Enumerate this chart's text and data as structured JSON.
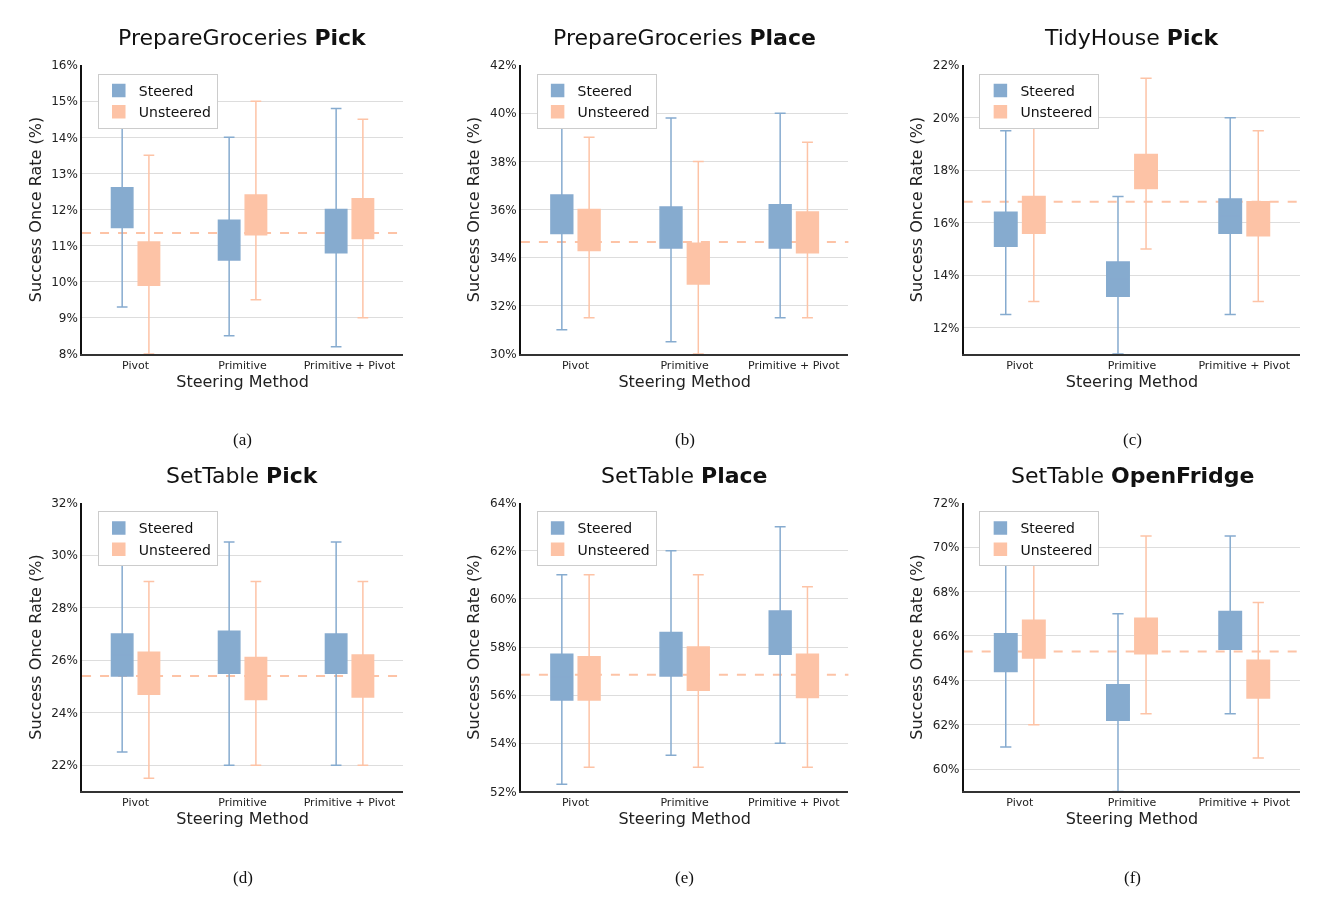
{
  "chart_data": [
    {
      "type": "box",
      "title": "PrepareGroceries Pick",
      "xlabel": "Steering Method",
      "ylabel": "Success Once Rate (%)",
      "categories": [
        "Pivot",
        "Primitive",
        "Primitive + Pivot"
      ],
      "ylim": [
        8,
        16
      ],
      "yticks": [
        {
          "value": 8,
          "label": "8%"
        },
        {
          "value": 9,
          "label": "9%"
        },
        {
          "value": 10,
          "label": "10%"
        },
        {
          "value": 11,
          "label": "11%"
        },
        {
          "value": 12,
          "label": "12%"
        },
        {
          "value": 13,
          "label": "13%"
        },
        {
          "value": 14,
          "label": "14%"
        },
        {
          "value": 15,
          "label": "15%"
        },
        {
          "value": 16,
          "label": "16%"
        }
      ],
      "grid": "y",
      "legend": "top left",
      "annotations": [
        "(a)"
      ],
      "ref_lines": [
        {
          "axis": "y",
          "value": 11.35,
          "color": "#fdc3a6",
          "line_style": "dashed"
        }
      ],
      "series": [
        {
          "name": "Steered",
          "color": "#86abcf",
          "boxes": [
            {
              "low": 9.3,
              "q1": 11.5,
              "median": 12.05,
              "q3": 12.6,
              "high": 14.8
            },
            {
              "low": 8.5,
              "q1": 10.6,
              "median": 11.15,
              "q3": 11.7,
              "high": 14.0
            },
            {
              "low": 8.2,
              "q1": 10.8,
              "median": 11.4,
              "q3": 12.0,
              "high": 14.8
            }
          ]
        },
        {
          "name": "Unsteered",
          "color": "#fdc3a6",
          "boxes": [
            {
              "low": 8.0,
              "q1": 9.9,
              "median": 10.5,
              "q3": 11.1,
              "high": 13.5
            },
            {
              "low": 9.5,
              "q1": 11.3,
              "median": 11.85,
              "q3": 12.4,
              "high": 15.0
            },
            {
              "low": 9.0,
              "q1": 11.2,
              "median": 11.75,
              "q3": 12.3,
              "high": 14.5
            }
          ]
        }
      ]
    },
    {
      "type": "box",
      "title": "PrepareGroceries Place",
      "xlabel": "Steering Method",
      "ylabel": "Success Once Rate (%)",
      "categories": [
        "Pivot",
        "Primitive",
        "Primitive + Pivot"
      ],
      "ylim": [
        30,
        42
      ],
      "yticks": [
        {
          "value": 30,
          "label": "30%"
        },
        {
          "value": 32,
          "label": "32%"
        },
        {
          "value": 34,
          "label": "34%"
        },
        {
          "value": 36,
          "label": "36%"
        },
        {
          "value": 38,
          "label": "38%"
        },
        {
          "value": 40,
          "label": "40%"
        },
        {
          "value": 42,
          "label": "42%"
        }
      ],
      "grid": "y",
      "legend": "top left",
      "annotations": [
        "(b)"
      ],
      "ref_lines": [
        {
          "axis": "y",
          "value": 34.65,
          "color": "#fdc3a6",
          "line_style": "dashed"
        }
      ],
      "series": [
        {
          "name": "Steered",
          "color": "#86abcf",
          "boxes": [
            {
              "low": 31.0,
              "q1": 35.0,
              "median": 35.8,
              "q3": 36.6,
              "high": 40.0
            },
            {
              "low": 30.5,
              "q1": 34.4,
              "median": 35.25,
              "q3": 36.1,
              "high": 39.8
            },
            {
              "low": 31.5,
              "q1": 34.4,
              "median": 35.3,
              "q3": 36.2,
              "high": 40.0
            }
          ]
        },
        {
          "name": "Unsteered",
          "color": "#fdc3a6",
          "boxes": [
            {
              "low": 31.5,
              "q1": 34.3,
              "median": 35.15,
              "q3": 36.0,
              "high": 39.0
            },
            {
              "low": 30.0,
              "q1": 32.9,
              "median": 33.75,
              "q3": 34.6,
              "high": 38.0
            },
            {
              "low": 31.5,
              "q1": 34.2,
              "median": 35.05,
              "q3": 35.9,
              "high": 38.8
            }
          ]
        }
      ]
    },
    {
      "type": "box",
      "title": "TidyHouse Pick",
      "xlabel": "Steering Method",
      "ylabel": "Success Once Rate (%)",
      "categories": [
        "Pivot",
        "Primitive",
        "Primitive + Pivot"
      ],
      "ylim": [
        11,
        22
      ],
      "yticks": [
        {
          "value": 12,
          "label": "12%"
        },
        {
          "value": 14,
          "label": "14%"
        },
        {
          "value": 16,
          "label": "16%"
        },
        {
          "value": 18,
          "label": "18%"
        },
        {
          "value": 20,
          "label": "20%"
        },
        {
          "value": 22,
          "label": "22%"
        }
      ],
      "grid": "y",
      "legend": "top left",
      "annotations": [
        "(c)"
      ],
      "ref_lines": [
        {
          "axis": "y",
          "value": 16.8,
          "color": "#fdc3a6",
          "line_style": "dashed"
        }
      ],
      "series": [
        {
          "name": "Steered",
          "color": "#86abcf",
          "boxes": [
            {
              "low": 12.5,
              "q1": 15.1,
              "median": 15.7,
              "q3": 16.4,
              "high": 19.5
            },
            {
              "low": 11.0,
              "q1": 13.2,
              "median": 13.85,
              "q3": 14.5,
              "high": 17.0
            },
            {
              "low": 12.5,
              "q1": 15.6,
              "median": 16.25,
              "q3": 16.9,
              "high": 20.0
            }
          ]
        },
        {
          "name": "Unsteered",
          "color": "#fdc3a6",
          "boxes": [
            {
              "low": 13.0,
              "q1": 15.6,
              "median": 16.3,
              "q3": 17.0,
              "high": 20.5
            },
            {
              "low": 15.0,
              "q1": 17.3,
              "median": 17.9,
              "q3": 18.6,
              "high": 21.5
            },
            {
              "low": 13.0,
              "q1": 15.5,
              "median": 16.1,
              "q3": 16.8,
              "high": 19.5
            }
          ]
        }
      ]
    },
    {
      "type": "box",
      "title": "SetTable Pick",
      "xlabel": "Steering Method",
      "ylabel": "Success Once Rate (%)",
      "categories": [
        "Pivot",
        "Primitive",
        "Primitive + Pivot"
      ],
      "ylim": [
        21,
        32
      ],
      "yticks": [
        {
          "value": 22,
          "label": "22%"
        },
        {
          "value": 24,
          "label": "24%"
        },
        {
          "value": 26,
          "label": "26%"
        },
        {
          "value": 28,
          "label": "28%"
        },
        {
          "value": 30,
          "label": "30%"
        },
        {
          "value": 32,
          "label": "32%"
        }
      ],
      "grid": "y",
      "legend": "top left",
      "annotations": [
        "(d)"
      ],
      "ref_lines": [
        {
          "axis": "y",
          "value": 25.4,
          "color": "#fdc3a6",
          "line_style": "dashed"
        }
      ],
      "series": [
        {
          "name": "Steered",
          "color": "#86abcf",
          "boxes": [
            {
              "low": 22.5,
              "q1": 25.4,
              "median": 26.2,
              "q3": 27.0,
              "high": 30.0
            },
            {
              "low": 22.0,
              "q1": 25.5,
              "median": 26.3,
              "q3": 27.1,
              "high": 30.5
            },
            {
              "low": 22.0,
              "q1": 25.5,
              "median": 26.25,
              "q3": 27.0,
              "high": 30.5
            }
          ]
        },
        {
          "name": "Unsteered",
          "color": "#fdc3a6",
          "boxes": [
            {
              "low": 21.5,
              "q1": 24.7,
              "median": 25.5,
              "q3": 26.3,
              "high": 29.0
            },
            {
              "low": 22.0,
              "q1": 24.5,
              "median": 25.3,
              "q3": 26.1,
              "high": 29.0
            },
            {
              "low": 22.0,
              "q1": 24.6,
              "median": 25.4,
              "q3": 26.2,
              "high": 29.0
            }
          ]
        }
      ]
    },
    {
      "type": "box",
      "title": "SetTable Place",
      "xlabel": "Steering Method",
      "ylabel": "Success Once Rate (%)",
      "categories": [
        "Pivot",
        "Primitive",
        "Primitive + Pivot"
      ],
      "ylim": [
        52,
        64
      ],
      "yticks": [
        {
          "value": 52,
          "label": "52%"
        },
        {
          "value": 54,
          "label": "54%"
        },
        {
          "value": 56,
          "label": "56%"
        },
        {
          "value": 58,
          "label": "58%"
        },
        {
          "value": 60,
          "label": "60%"
        },
        {
          "value": 62,
          "label": "62%"
        },
        {
          "value": 64,
          "label": "64%"
        }
      ],
      "grid": "y",
      "legend": "top left",
      "annotations": [
        "(e)"
      ],
      "ref_lines": [
        {
          "axis": "y",
          "value": 56.85,
          "color": "#fdc3a6",
          "line_style": "dashed"
        }
      ],
      "series": [
        {
          "name": "Steered",
          "color": "#86abcf",
          "boxes": [
            {
              "low": 52.3,
              "q1": 55.8,
              "median": 56.75,
              "q3": 57.7,
              "high": 61.0
            },
            {
              "low": 53.5,
              "q1": 56.8,
              "median": 57.7,
              "q3": 58.6,
              "high": 62.0
            },
            {
              "low": 54.0,
              "q1": 57.7,
              "median": 58.6,
              "q3": 59.5,
              "high": 63.0
            }
          ]
        },
        {
          "name": "Unsteered",
          "color": "#fdc3a6",
          "boxes": [
            {
              "low": 53.0,
              "q1": 55.8,
              "median": 56.7,
              "q3": 57.6,
              "high": 61.0
            },
            {
              "low": 53.0,
              "q1": 56.2,
              "median": 57.1,
              "q3": 58.0,
              "high": 61.0
            },
            {
              "low": 53.0,
              "q1": 55.9,
              "median": 56.8,
              "q3": 57.7,
              "high": 60.5
            }
          ]
        }
      ]
    },
    {
      "type": "box",
      "title": "SetTable OpenFridge",
      "xlabel": "Steering Method",
      "ylabel": "Success Once Rate (%)",
      "categories": [
        "Pivot",
        "Primitive",
        "Primitive + Pivot"
      ],
      "ylim": [
        59,
        72
      ],
      "yticks": [
        {
          "value": 60,
          "label": "60%"
        },
        {
          "value": 62,
          "label": "62%"
        },
        {
          "value": 64,
          "label": "64%"
        },
        {
          "value": 66,
          "label": "66%"
        },
        {
          "value": 68,
          "label": "68%"
        },
        {
          "value": 70,
          "label": "70%"
        },
        {
          "value": 72,
          "label": "72%"
        }
      ],
      "grid": "y",
      "legend": "top left",
      "annotations": [
        "(f)"
      ],
      "ref_lines": [
        {
          "axis": "y",
          "value": 65.3,
          "color": "#fdc3a6",
          "line_style": "dashed"
        }
      ],
      "series": [
        {
          "name": "Steered",
          "color": "#86abcf",
          "boxes": [
            {
              "low": 61.0,
              "q1": 64.4,
              "median": 65.25,
              "q3": 66.1,
              "high": 69.5
            },
            {
              "low": 59.0,
              "q1": 62.2,
              "median": 63.0,
              "q3": 63.8,
              "high": 67.0
            },
            {
              "low": 62.5,
              "q1": 65.4,
              "median": 66.25,
              "q3": 67.1,
              "high": 70.5
            }
          ]
        },
        {
          "name": "Unsteered",
          "color": "#fdc3a6",
          "boxes": [
            {
              "low": 62.0,
              "q1": 65.0,
              "median": 65.8,
              "q3": 66.7,
              "high": 70.0
            },
            {
              "low": 62.5,
              "q1": 65.2,
              "median": 66.0,
              "q3": 66.8,
              "high": 70.5
            },
            {
              "low": 60.5,
              "q1": 63.2,
              "median": 64.05,
              "q3": 64.9,
              "high": 67.5
            }
          ]
        }
      ]
    }
  ]
}
